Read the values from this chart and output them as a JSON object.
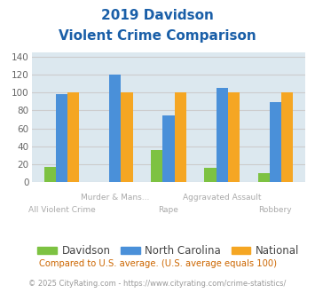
{
  "title_line1": "2019 Davidson",
  "title_line2": "Violent Crime Comparison",
  "categories": [
    "All Violent Crime",
    "Murder & Mans...",
    "Rape",
    "Aggravated Assault",
    "Robbery"
  ],
  "top_labels": [
    "",
    "Murder & Mans...",
    "",
    "Aggravated Assault",
    ""
  ],
  "bot_labels": [
    "All Violent Crime",
    "",
    "Rape",
    "",
    "Robbery"
  ],
  "davidson": [
    17,
    0,
    36,
    16,
    10
  ],
  "north_carolina": [
    98,
    120,
    74,
    105,
    89
  ],
  "national": [
    100,
    100,
    100,
    100,
    100
  ],
  "bar_colors": {
    "davidson": "#7dc242",
    "north_carolina": "#4a90d9",
    "national": "#f5a623"
  },
  "ylim": [
    0,
    145
  ],
  "yticks": [
    0,
    20,
    40,
    60,
    80,
    100,
    120,
    140
  ],
  "grid_color": "#cccccc",
  "bg_color": "#dce8ef",
  "title_color": "#1a5fa8",
  "legend_labels": [
    "Davidson",
    "North Carolina",
    "National"
  ],
  "footnote1": "Compared to U.S. average. (U.S. average equals 100)",
  "footnote2": "© 2025 CityRating.com - https://www.cityrating.com/crime-statistics/",
  "footnote1_color": "#cc6600",
  "footnote2_color": "#999999",
  "label_color": "#aaaaaa"
}
